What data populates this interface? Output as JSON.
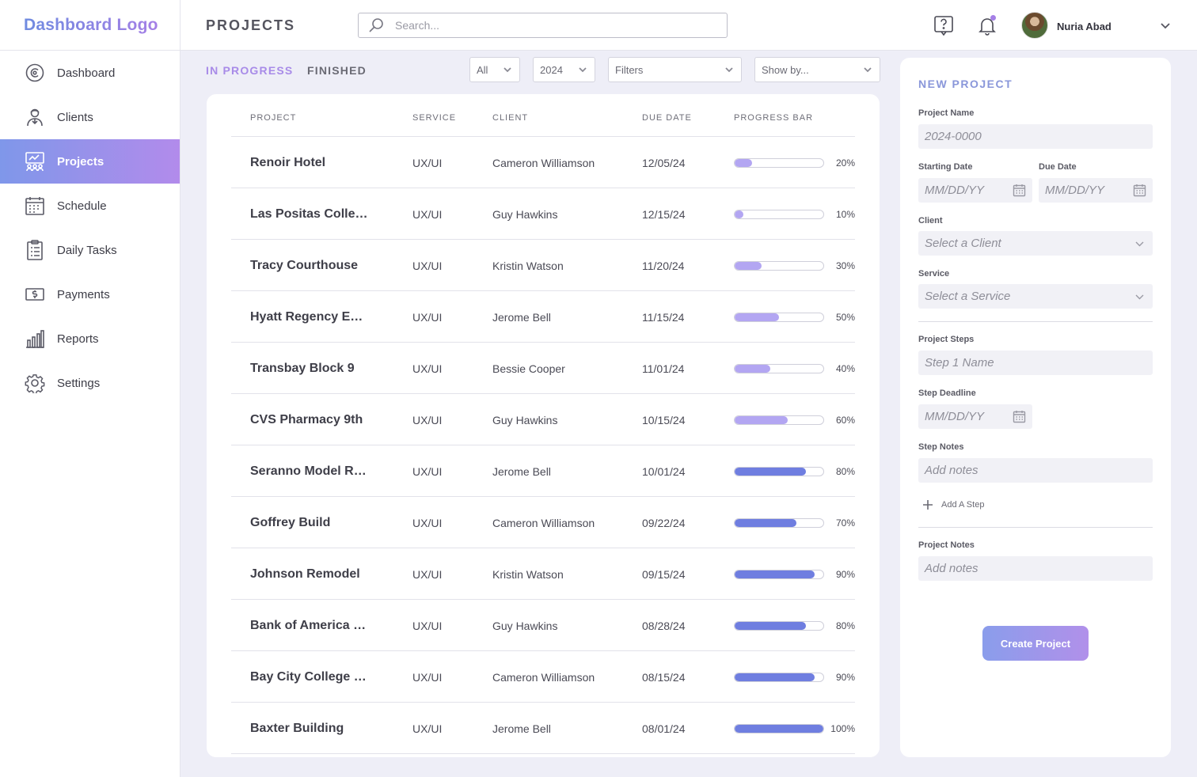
{
  "logo": "Dashboard Logo",
  "sidebar": {
    "items": [
      {
        "label": "Dashboard",
        "icon": "dashboard-icon"
      },
      {
        "label": "Clients",
        "icon": "clients-icon"
      },
      {
        "label": "Projects",
        "icon": "projects-icon",
        "active": true
      },
      {
        "label": "Schedule",
        "icon": "calendar-icon"
      },
      {
        "label": "Daily Tasks",
        "icon": "clipboard-icon"
      },
      {
        "label": "Payments",
        "icon": "payments-icon"
      },
      {
        "label": "Reports",
        "icon": "bar-chart-icon"
      },
      {
        "label": "Settings",
        "icon": "gear-icon"
      }
    ]
  },
  "header": {
    "title": "PROJECTS",
    "search_placeholder": "Search...",
    "user_name": "Nuria Abad"
  },
  "tabs": {
    "in_progress": "IN PROGRESS",
    "finished": "FINISHED"
  },
  "filters": {
    "all": "All",
    "year": "2024",
    "filters": "Filters",
    "show_by": "Show by..."
  },
  "table": {
    "headers": {
      "project": "PROJECT",
      "service": "SERVICE",
      "client": "CLIENT",
      "due_date": "DUE DATE",
      "progress": "PROGRESS BAR"
    },
    "rows": [
      {
        "project": "Renoir Hotel",
        "service": "UX/UI",
        "client": "Cameron Williamson",
        "due": "12/05/24",
        "progress": 20,
        "pct": "20%"
      },
      {
        "project": "Las Positas College",
        "service": "UX/UI",
        "client": "Guy Hawkins",
        "due": "12/15/24",
        "progress": 10,
        "pct": "10%"
      },
      {
        "project": "Tracy Courthouse",
        "service": "UX/UI",
        "client": "Kristin Watson",
        "due": "11/20/24",
        "progress": 30,
        "pct": "30%"
      },
      {
        "project": "Hyatt Regency Emeryville",
        "service": "UX/UI",
        "client": "Jerome Bell",
        "due": "11/15/24",
        "progress": 50,
        "pct": "50%"
      },
      {
        "project": "Transbay Block 9",
        "service": "UX/UI",
        "client": "Bessie Cooper",
        "due": "11/01/24",
        "progress": 40,
        "pct": "40%"
      },
      {
        "project": "CVS Pharmacy 9th",
        "service": "UX/UI",
        "client": "Guy Hawkins",
        "due": "10/15/24",
        "progress": 60,
        "pct": "60%"
      },
      {
        "project": "Seranno Model Remodel",
        "service": "UX/UI",
        "client": "Jerome Bell",
        "due": "10/01/24",
        "progress": 80,
        "pct": "80%"
      },
      {
        "project": "Goffrey Build",
        "service": "UX/UI",
        "client": "Cameron Williamson",
        "due": "09/22/24",
        "progress": 70,
        "pct": "70%"
      },
      {
        "project": "Johnson Remodel",
        "service": "UX/UI",
        "client": "Kristin Watson",
        "due": "09/15/24",
        "progress": 90,
        "pct": "90%"
      },
      {
        "project": "Bank of America Plaza",
        "service": "UX/UI",
        "client": "Guy Hawkins",
        "due": "08/28/24",
        "progress": 80,
        "pct": "80%"
      },
      {
        "project": "Bay City College Hall",
        "service": "UX/UI",
        "client": "Cameron Williamson",
        "due": "08/15/24",
        "progress": 90,
        "pct": "90%"
      },
      {
        "project": "Baxter Building",
        "service": "UX/UI",
        "client": "Jerome Bell",
        "due": "08/01/24",
        "progress": 100,
        "pct": "100%"
      }
    ]
  },
  "new_project": {
    "title": "NEW PROJECT",
    "project_name_label": "Project Name",
    "project_name_placeholder": "2024-0000",
    "starting_date_label": "Starting Date",
    "due_date_label": "Due Date",
    "date_placeholder": "MM/DD/YY",
    "client_label": "Client",
    "client_placeholder": "Select a Client",
    "service_label": "Service",
    "service_placeholder": "Select a Service",
    "project_steps_label": "Project Steps",
    "step_placeholder": "Step 1 Name",
    "step_deadline_label": "Step Deadline",
    "step_notes_label": "Step Notes",
    "notes_placeholder": "Add notes",
    "add_step": "Add A Step",
    "project_notes_label": "Project Notes",
    "create_button": "Create Project"
  },
  "colors": {
    "accent": "#A88BE8",
    "progress_light": "#B3A6F2",
    "progress_dark": "#6F7EE0"
  }
}
